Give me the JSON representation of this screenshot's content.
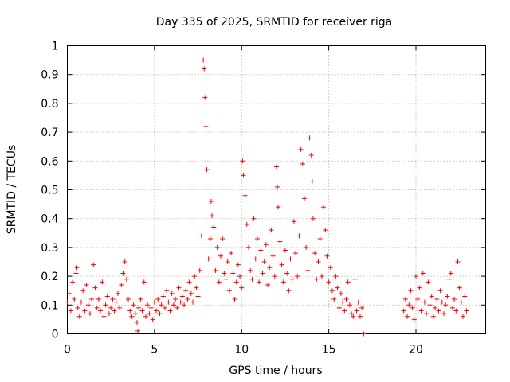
{
  "chart_data": {
    "type": "scatter",
    "title": "Day 335 of 2025, SRMTID for receiver riga",
    "xlabel": "GPS time / hours",
    "ylabel": "SRMTID / TECUs",
    "xlim": [
      0,
      24
    ],
    "ylim": [
      0,
      1
    ],
    "x_ticks": [
      0,
      5,
      10,
      15,
      20
    ],
    "x_tick_labels": [
      "0",
      "5",
      "10",
      "15",
      "20"
    ],
    "y_ticks": [
      0,
      0.1,
      0.2,
      0.3,
      0.4,
      0.5,
      0.6,
      0.7,
      0.8,
      0.9,
      1
    ],
    "y_tick_labels": [
      "0",
      "0.1",
      "0.2",
      "0.3",
      "0.4",
      "0.5",
      "0.6",
      "0.7",
      "0.8",
      "0.9",
      "1"
    ],
    "grid": true,
    "marker": "+",
    "color": "#ff0000",
    "series": [
      {
        "name": "SRMTID",
        "x": [
          0.0,
          0.1,
          0.2,
          0.3,
          0.4,
          0.5,
          0.55,
          0.6,
          0.7,
          0.8,
          0.9,
          1.0,
          1.1,
          1.2,
          1.3,
          1.4,
          1.5,
          1.6,
          1.7,
          1.8,
          1.9,
          2.0,
          2.1,
          2.2,
          2.3,
          2.4,
          2.5,
          2.6,
          2.7,
          2.8,
          2.9,
          3.0,
          3.1,
          3.2,
          3.3,
          3.4,
          3.5,
          3.6,
          3.7,
          3.8,
          3.9,
          4.0,
          4.05,
          4.1,
          4.2,
          4.3,
          4.4,
          4.5,
          4.6,
          4.7,
          4.8,
          4.9,
          5.0,
          5.1,
          5.2,
          5.3,
          5.4,
          5.5,
          5.6,
          5.7,
          5.8,
          5.9,
          6.0,
          6.1,
          6.2,
          6.3,
          6.4,
          6.5,
          6.6,
          6.7,
          6.8,
          6.9,
          7.0,
          7.1,
          7.2,
          7.3,
          7.4,
          7.5,
          7.6,
          7.7,
          7.8,
          7.85,
          7.9,
          7.95,
          8.0,
          8.1,
          8.2,
          8.25,
          8.3,
          8.4,
          8.5,
          8.6,
          8.7,
          8.8,
          8.9,
          9.0,
          9.1,
          9.2,
          9.3,
          9.4,
          9.5,
          9.6,
          9.7,
          9.8,
          9.9,
          10.0,
          10.05,
          10.1,
          10.2,
          10.3,
          10.4,
          10.5,
          10.6,
          10.7,
          10.8,
          10.9,
          11.0,
          11.1,
          11.2,
          11.3,
          11.4,
          11.5,
          11.6,
          11.7,
          11.8,
          11.9,
          12.0,
          12.05,
          12.1,
          12.2,
          12.3,
          12.4,
          12.5,
          12.6,
          12.7,
          12.8,
          12.9,
          13.0,
          13.1,
          13.2,
          13.3,
          13.4,
          13.5,
          13.6,
          13.7,
          13.8,
          13.9,
          14.0,
          14.05,
          14.1,
          14.2,
          14.3,
          14.4,
          14.5,
          14.6,
          14.7,
          14.8,
          14.9,
          15.0,
          15.1,
          15.2,
          15.3,
          15.4,
          15.5,
          15.6,
          15.7,
          15.8,
          15.9,
          16.0,
          16.1,
          16.2,
          16.3,
          16.4,
          16.5,
          16.6,
          16.7,
          16.8,
          16.9,
          17.0,
          19.3,
          19.4,
          19.5,
          19.6,
          19.7,
          19.8,
          19.9,
          20.0,
          20.1,
          20.2,
          20.3,
          20.4,
          20.5,
          20.6,
          20.7,
          20.8,
          20.9,
          21.0,
          21.1,
          21.2,
          21.3,
          21.4,
          21.5,
          21.6,
          21.7,
          21.8,
          21.9,
          22.0,
          22.1,
          22.2,
          22.3,
          22.4,
          22.5,
          22.6,
          22.7,
          22.8,
          22.9
        ],
        "values": [
          0.11,
          0.14,
          0.08,
          0.18,
          0.12,
          0.21,
          0.23,
          0.09,
          0.06,
          0.11,
          0.15,
          0.08,
          0.17,
          0.1,
          0.07,
          0.12,
          0.24,
          0.16,
          0.09,
          0.12,
          0.08,
          0.18,
          0.06,
          0.1,
          0.13,
          0.07,
          0.09,
          0.12,
          0.08,
          0.11,
          0.14,
          0.09,
          0.17,
          0.21,
          0.25,
          0.19,
          0.12,
          0.08,
          0.06,
          0.1,
          0.07,
          0.04,
          0.01,
          0.09,
          0.12,
          0.08,
          0.18,
          0.06,
          0.1,
          0.07,
          0.09,
          0.05,
          0.11,
          0.08,
          0.12,
          0.07,
          0.1,
          0.13,
          0.09,
          0.15,
          0.11,
          0.08,
          0.14,
          0.1,
          0.12,
          0.09,
          0.16,
          0.11,
          0.13,
          0.1,
          0.15,
          0.12,
          0.18,
          0.14,
          0.11,
          0.2,
          0.16,
          0.13,
          0.22,
          0.34,
          0.95,
          0.92,
          0.82,
          0.72,
          0.57,
          0.26,
          0.33,
          0.46,
          0.41,
          0.37,
          0.22,
          0.3,
          0.18,
          0.27,
          0.33,
          0.21,
          0.19,
          0.25,
          0.15,
          0.28,
          0.21,
          0.12,
          0.18,
          0.24,
          0.2,
          0.16,
          0.6,
          0.55,
          0.48,
          0.38,
          0.3,
          0.22,
          0.19,
          0.4,
          0.26,
          0.33,
          0.18,
          0.29,
          0.21,
          0.25,
          0.31,
          0.17,
          0.23,
          0.36,
          0.27,
          0.2,
          0.58,
          0.51,
          0.44,
          0.32,
          0.24,
          0.18,
          0.29,
          0.21,
          0.15,
          0.26,
          0.19,
          0.39,
          0.28,
          0.2,
          0.34,
          0.64,
          0.59,
          0.47,
          0.3,
          0.22,
          0.68,
          0.62,
          0.53,
          0.4,
          0.28,
          0.19,
          0.25,
          0.33,
          0.2,
          0.44,
          0.36,
          0.27,
          0.18,
          0.23,
          0.15,
          0.12,
          0.2,
          0.16,
          0.09,
          0.14,
          0.11,
          0.08,
          0.12,
          0.18,
          0.1,
          0.07,
          0.06,
          0.19,
          0.08,
          0.11,
          0.06,
          0.09,
          0.0,
          0.08,
          0.12,
          0.06,
          0.1,
          0.15,
          0.09,
          0.05,
          0.2,
          0.12,
          0.16,
          0.08,
          0.21,
          0.11,
          0.07,
          0.18,
          0.1,
          0.13,
          0.06,
          0.09,
          0.12,
          0.08,
          0.15,
          0.11,
          0.07,
          0.1,
          0.13,
          0.19,
          0.21,
          0.09,
          0.12,
          0.08,
          0.25,
          0.16,
          0.11,
          0.06,
          0.13,
          0.08
        ]
      }
    ]
  }
}
